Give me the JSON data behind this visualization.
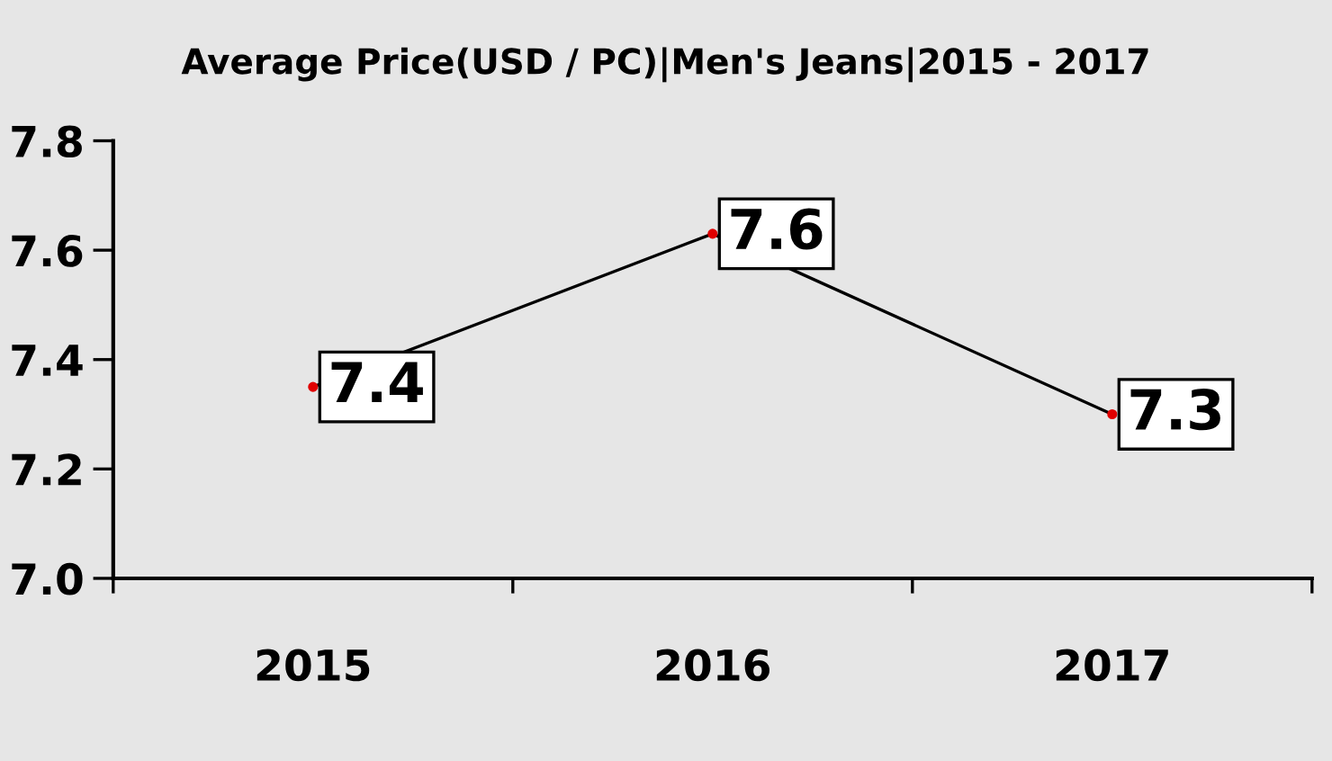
{
  "chart_data": {
    "type": "line",
    "title": "Average Price(USD / PC)|Men's Jeans|2015 - 2017",
    "categories": [
      "2015",
      "2016",
      "2017"
    ],
    "series": [
      {
        "color": "#000000",
        "values": [
          7.35,
          7.63,
          7.3
        ],
        "value_labels": [
          "7.4",
          "7.6",
          "7.3"
        ]
      }
    ],
    "ylim": [
      7.0,
      7.8
    ],
    "yticks": [
      {
        "value": 7.0,
        "label": "7.0"
      },
      {
        "value": 7.2,
        "label": "7.2"
      },
      {
        "value": 7.4,
        "label": "7.4"
      },
      {
        "value": 7.6,
        "label": "7.6"
      },
      {
        "value": 7.8,
        "label": "7.8"
      }
    ],
    "grid": false,
    "legend": false,
    "marker": "circle",
    "line_style": "solid"
  }
}
